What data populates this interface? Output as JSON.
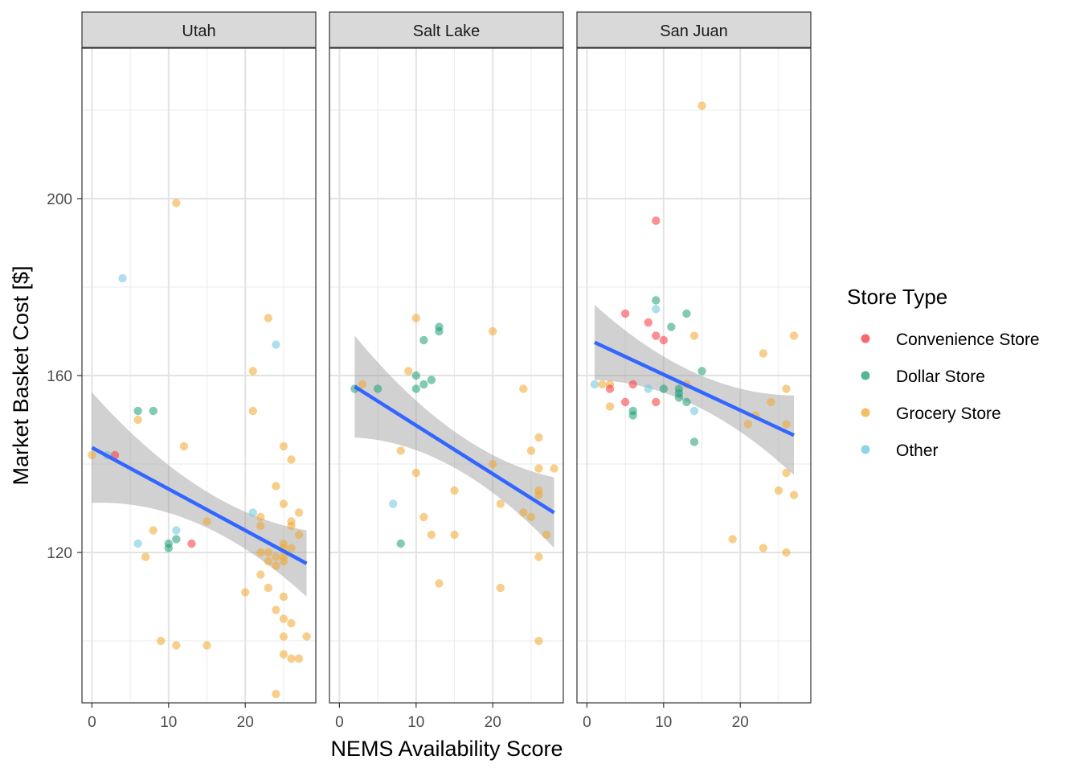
{
  "chart_data": {
    "type": "scatter",
    "xlabel": "NEMS Availability Score",
    "ylabel": "Market Basket Cost [$]",
    "xlim": [
      -1.3,
      29.2
    ],
    "ylim": [
      86.0,
      234.0
    ],
    "x_ticks": [
      0,
      10,
      20
    ],
    "y_ticks": [
      120,
      160,
      200
    ],
    "grid": true,
    "legend": {
      "title": "Store Type",
      "position": "right",
      "entries": [
        {
          "label": "Convenience Store",
          "color": "#F8333C"
        },
        {
          "label": "Dollar Store",
          "color": "#1B9E77"
        },
        {
          "label": "Grocery Store",
          "color": "#F0A830"
        },
        {
          "label": "Other",
          "color": "#6CC4DE"
        }
      ]
    },
    "trend_line_color": "#3366FF",
    "confidence_band_color": "#999999",
    "panels": [
      {
        "title": "Utah",
        "trend": {
          "x": [
            0,
            28
          ],
          "y": [
            143.7,
            117.5
          ],
          "ci_lower": [
            131.2,
            110.0
          ],
          "ci_upper": [
            156.2,
            125.0
          ]
        },
        "points": [
          {
            "x": 0,
            "y": 142,
            "type": "Grocery Store"
          },
          {
            "x": 2,
            "y": 142,
            "type": "Other"
          },
          {
            "x": 3,
            "y": 142,
            "type": "Convenience Store"
          },
          {
            "x": 4,
            "y": 182,
            "type": "Other"
          },
          {
            "x": 6,
            "y": 152,
            "type": "Dollar Store"
          },
          {
            "x": 6,
            "y": 150,
            "type": "Grocery Store"
          },
          {
            "x": 6,
            "y": 122,
            "type": "Other"
          },
          {
            "x": 7,
            "y": 119,
            "type": "Grocery Store"
          },
          {
            "x": 8,
            "y": 152,
            "type": "Dollar Store"
          },
          {
            "x": 8,
            "y": 125,
            "type": "Grocery Store"
          },
          {
            "x": 9,
            "y": 100,
            "type": "Grocery Store"
          },
          {
            "x": 10,
            "y": 122,
            "type": "Dollar Store"
          },
          {
            "x": 10,
            "y": 121,
            "type": "Dollar Store"
          },
          {
            "x": 11,
            "y": 199,
            "type": "Grocery Store"
          },
          {
            "x": 11,
            "y": 125,
            "type": "Other"
          },
          {
            "x": 11,
            "y": 123,
            "type": "Dollar Store"
          },
          {
            "x": 11,
            "y": 99,
            "type": "Grocery Store"
          },
          {
            "x": 12,
            "y": 144,
            "type": "Grocery Store"
          },
          {
            "x": 13,
            "y": 122,
            "type": "Convenience Store"
          },
          {
            "x": 15,
            "y": 127,
            "type": "Grocery Store"
          },
          {
            "x": 15,
            "y": 99,
            "type": "Grocery Store"
          },
          {
            "x": 20,
            "y": 111,
            "type": "Grocery Store"
          },
          {
            "x": 21,
            "y": 161,
            "type": "Grocery Store"
          },
          {
            "x": 21,
            "y": 152,
            "type": "Grocery Store"
          },
          {
            "x": 21,
            "y": 129,
            "type": "Other"
          },
          {
            "x": 22,
            "y": 128,
            "type": "Grocery Store"
          },
          {
            "x": 22,
            "y": 126,
            "type": "Grocery Store"
          },
          {
            "x": 22,
            "y": 120,
            "type": "Grocery Store"
          },
          {
            "x": 22,
            "y": 115,
            "type": "Grocery Store"
          },
          {
            "x": 23,
            "y": 173,
            "type": "Grocery Store"
          },
          {
            "x": 23,
            "y": 120,
            "type": "Grocery Store"
          },
          {
            "x": 23,
            "y": 118,
            "type": "Grocery Store"
          },
          {
            "x": 23,
            "y": 112,
            "type": "Grocery Store"
          },
          {
            "x": 24,
            "y": 167,
            "type": "Other"
          },
          {
            "x": 24,
            "y": 135,
            "type": "Grocery Store"
          },
          {
            "x": 24,
            "y": 119,
            "type": "Grocery Store"
          },
          {
            "x": 24,
            "y": 117,
            "type": "Grocery Store"
          },
          {
            "x": 24,
            "y": 107,
            "type": "Grocery Store"
          },
          {
            "x": 24,
            "y": 88,
            "type": "Grocery Store"
          },
          {
            "x": 25,
            "y": 144,
            "type": "Grocery Store"
          },
          {
            "x": 25,
            "y": 131,
            "type": "Grocery Store"
          },
          {
            "x": 25,
            "y": 122,
            "type": "Grocery Store"
          },
          {
            "x": 25,
            "y": 121,
            "type": "Grocery Store"
          },
          {
            "x": 25,
            "y": 119,
            "type": "Grocery Store"
          },
          {
            "x": 25,
            "y": 118,
            "type": "Grocery Store"
          },
          {
            "x": 25,
            "y": 110,
            "type": "Grocery Store"
          },
          {
            "x": 25,
            "y": 105,
            "type": "Grocery Store"
          },
          {
            "x": 25,
            "y": 101,
            "type": "Grocery Store"
          },
          {
            "x": 25,
            "y": 97,
            "type": "Grocery Store"
          },
          {
            "x": 26,
            "y": 141,
            "type": "Grocery Store"
          },
          {
            "x": 26,
            "y": 127,
            "type": "Grocery Store"
          },
          {
            "x": 26,
            "y": 126,
            "type": "Grocery Store"
          },
          {
            "x": 26,
            "y": 121,
            "type": "Grocery Store"
          },
          {
            "x": 26,
            "y": 104,
            "type": "Grocery Store"
          },
          {
            "x": 26,
            "y": 96,
            "type": "Grocery Store"
          },
          {
            "x": 27,
            "y": 129,
            "type": "Grocery Store"
          },
          {
            "x": 27,
            "y": 124,
            "type": "Grocery Store"
          },
          {
            "x": 27,
            "y": 96,
            "type": "Grocery Store"
          },
          {
            "x": 28,
            "y": 101,
            "type": "Grocery Store"
          }
        ]
      },
      {
        "title": "Salt Lake",
        "trend": {
          "x": [
            2,
            28
          ],
          "y": [
            157.5,
            129.0
          ],
          "ci_lower": [
            146.0,
            121.0
          ],
          "ci_upper": [
            169.0,
            137.0
          ]
        },
        "points": [
          {
            "x": 2,
            "y": 157,
            "type": "Dollar Store"
          },
          {
            "x": 3,
            "y": 158,
            "type": "Grocery Store"
          },
          {
            "x": 5,
            "y": 157,
            "type": "Dollar Store"
          },
          {
            "x": 7,
            "y": 131,
            "type": "Other"
          },
          {
            "x": 8,
            "y": 143,
            "type": "Grocery Store"
          },
          {
            "x": 8,
            "y": 122,
            "type": "Dollar Store"
          },
          {
            "x": 9,
            "y": 161,
            "type": "Grocery Store"
          },
          {
            "x": 10,
            "y": 173,
            "type": "Grocery Store"
          },
          {
            "x": 10,
            "y": 160,
            "type": "Dollar Store"
          },
          {
            "x": 10,
            "y": 157,
            "type": "Dollar Store"
          },
          {
            "x": 10,
            "y": 138,
            "type": "Grocery Store"
          },
          {
            "x": 11,
            "y": 168,
            "type": "Dollar Store"
          },
          {
            "x": 11,
            "y": 158,
            "type": "Dollar Store"
          },
          {
            "x": 11,
            "y": 128,
            "type": "Grocery Store"
          },
          {
            "x": 12,
            "y": 159,
            "type": "Dollar Store"
          },
          {
            "x": 12,
            "y": 124,
            "type": "Grocery Store"
          },
          {
            "x": 13,
            "y": 171,
            "type": "Dollar Store"
          },
          {
            "x": 13,
            "y": 170,
            "type": "Dollar Store"
          },
          {
            "x": 13,
            "y": 113,
            "type": "Grocery Store"
          },
          {
            "x": 15,
            "y": 134,
            "type": "Grocery Store"
          },
          {
            "x": 15,
            "y": 124,
            "type": "Grocery Store"
          },
          {
            "x": 20,
            "y": 170,
            "type": "Grocery Store"
          },
          {
            "x": 20,
            "y": 140,
            "type": "Grocery Store"
          },
          {
            "x": 21,
            "y": 131,
            "type": "Grocery Store"
          },
          {
            "x": 21,
            "y": 112,
            "type": "Grocery Store"
          },
          {
            "x": 24,
            "y": 157,
            "type": "Grocery Store"
          },
          {
            "x": 24,
            "y": 129,
            "type": "Grocery Store"
          },
          {
            "x": 25,
            "y": 143,
            "type": "Grocery Store"
          },
          {
            "x": 25,
            "y": 128,
            "type": "Grocery Store"
          },
          {
            "x": 26,
            "y": 146,
            "type": "Grocery Store"
          },
          {
            "x": 26,
            "y": 139,
            "type": "Grocery Store"
          },
          {
            "x": 26,
            "y": 134,
            "type": "Grocery Store"
          },
          {
            "x": 26,
            "y": 133,
            "type": "Grocery Store"
          },
          {
            "x": 26,
            "y": 119,
            "type": "Grocery Store"
          },
          {
            "x": 26,
            "y": 100,
            "type": "Grocery Store"
          },
          {
            "x": 27,
            "y": 124,
            "type": "Grocery Store"
          },
          {
            "x": 28,
            "y": 139,
            "type": "Grocery Store"
          }
        ]
      },
      {
        "title": "San Juan",
        "trend": {
          "x": [
            1,
            27
          ],
          "y": [
            167.5,
            146.5
          ],
          "ci_lower": [
            159.0,
            137.5
          ],
          "ci_upper": [
            176.0,
            155.5
          ]
        },
        "points": [
          {
            "x": 1,
            "y": 158,
            "type": "Other"
          },
          {
            "x": 2,
            "y": 158,
            "type": "Grocery Store"
          },
          {
            "x": 3,
            "y": 158,
            "type": "Grocery Store"
          },
          {
            "x": 3,
            "y": 157,
            "type": "Convenience Store"
          },
          {
            "x": 3,
            "y": 153,
            "type": "Grocery Store"
          },
          {
            "x": 5,
            "y": 174,
            "type": "Convenience Store"
          },
          {
            "x": 5,
            "y": 154,
            "type": "Convenience Store"
          },
          {
            "x": 6,
            "y": 158,
            "type": "Convenience Store"
          },
          {
            "x": 6,
            "y": 152,
            "type": "Dollar Store"
          },
          {
            "x": 6,
            "y": 151,
            "type": "Dollar Store"
          },
          {
            "x": 8,
            "y": 172,
            "type": "Convenience Store"
          },
          {
            "x": 8,
            "y": 157,
            "type": "Other"
          },
          {
            "x": 9,
            "y": 195,
            "type": "Convenience Store"
          },
          {
            "x": 9,
            "y": 177,
            "type": "Dollar Store"
          },
          {
            "x": 9,
            "y": 175,
            "type": "Other"
          },
          {
            "x": 9,
            "y": 169,
            "type": "Convenience Store"
          },
          {
            "x": 9,
            "y": 154,
            "type": "Convenience Store"
          },
          {
            "x": 10,
            "y": 168,
            "type": "Convenience Store"
          },
          {
            "x": 10,
            "y": 157,
            "type": "Dollar Store"
          },
          {
            "x": 11,
            "y": 171,
            "type": "Dollar Store"
          },
          {
            "x": 12,
            "y": 157,
            "type": "Dollar Store"
          },
          {
            "x": 12,
            "y": 156,
            "type": "Dollar Store"
          },
          {
            "x": 12,
            "y": 155,
            "type": "Dollar Store"
          },
          {
            "x": 13,
            "y": 174,
            "type": "Dollar Store"
          },
          {
            "x": 13,
            "y": 158,
            "type": "Grocery Store"
          },
          {
            "x": 13,
            "y": 154,
            "type": "Dollar Store"
          },
          {
            "x": 14,
            "y": 169,
            "type": "Grocery Store"
          },
          {
            "x": 14,
            "y": 152,
            "type": "Other"
          },
          {
            "x": 14,
            "y": 145,
            "type": "Dollar Store"
          },
          {
            "x": 15,
            "y": 221,
            "type": "Grocery Store"
          },
          {
            "x": 15,
            "y": 161,
            "type": "Dollar Store"
          },
          {
            "x": 19,
            "y": 123,
            "type": "Grocery Store"
          },
          {
            "x": 21,
            "y": 149,
            "type": "Grocery Store"
          },
          {
            "x": 22,
            "y": 151,
            "type": "Grocery Store"
          },
          {
            "x": 23,
            "y": 165,
            "type": "Grocery Store"
          },
          {
            "x": 23,
            "y": 121,
            "type": "Grocery Store"
          },
          {
            "x": 24,
            "y": 154,
            "type": "Grocery Store"
          },
          {
            "x": 25,
            "y": 134,
            "type": "Grocery Store"
          },
          {
            "x": 26,
            "y": 157,
            "type": "Grocery Store"
          },
          {
            "x": 26,
            "y": 149,
            "type": "Grocery Store"
          },
          {
            "x": 26,
            "y": 138,
            "type": "Grocery Store"
          },
          {
            "x": 26,
            "y": 120,
            "type": "Grocery Store"
          },
          {
            "x": 27,
            "y": 169,
            "type": "Grocery Store"
          },
          {
            "x": 27,
            "y": 133,
            "type": "Grocery Store"
          }
        ]
      }
    ]
  }
}
